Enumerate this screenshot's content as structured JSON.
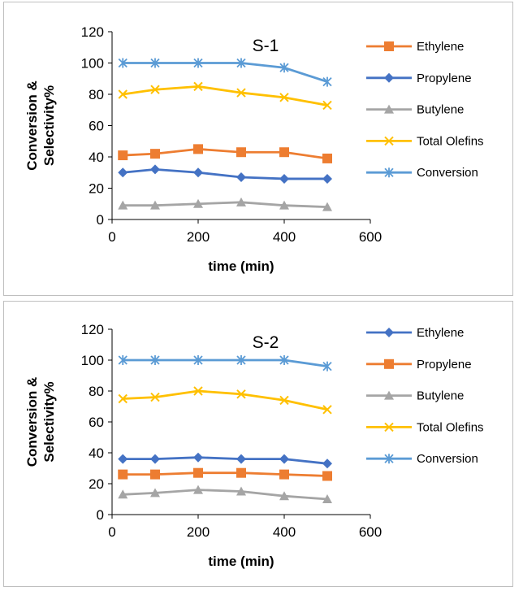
{
  "chart_data": [
    {
      "type": "line",
      "title": "S-1",
      "xlabel": "time (min)",
      "ylabel": "Conversion & Selectivity%",
      "xlim": [
        0,
        600
      ],
      "ylim": [
        0,
        120
      ],
      "xticks": [
        0,
        200,
        400,
        600
      ],
      "yticks": [
        0,
        20,
        40,
        60,
        80,
        100,
        120
      ],
      "grid": false,
      "legend": "right",
      "x": [
        25,
        100,
        200,
        300,
        400,
        500
      ],
      "series": [
        {
          "name": "Ethylene",
          "values": [
            41,
            42,
            45,
            43,
            43,
            39
          ],
          "color": "#ED7D31",
          "marker": "square"
        },
        {
          "name": "Propylene",
          "values": [
            30,
            32,
            30,
            27,
            26,
            26
          ],
          "color": "#4472C4",
          "marker": "diamond"
        },
        {
          "name": "Butylene",
          "values": [
            9,
            9,
            10,
            11,
            9,
            8
          ],
          "color": "#A5A5A5",
          "marker": "triangle"
        },
        {
          "name": "Total Olefins",
          "values": [
            80,
            83,
            85,
            81,
            78,
            73
          ],
          "color": "#FFC000",
          "marker": "x"
        },
        {
          "name": "Conversion",
          "values": [
            100,
            100,
            100,
            100,
            97,
            88
          ],
          "color": "#5B9BD5",
          "marker": "star"
        }
      ]
    },
    {
      "type": "line",
      "title": "S-2",
      "xlabel": "time (min)",
      "ylabel": "Conversion & Selectivity%",
      "xlim": [
        0,
        600
      ],
      "ylim": [
        0,
        120
      ],
      "xticks": [
        0,
        200,
        400,
        600
      ],
      "yticks": [
        0,
        20,
        40,
        60,
        80,
        100,
        120
      ],
      "grid": false,
      "legend": "right",
      "x": [
        25,
        100,
        200,
        300,
        400,
        500
      ],
      "series": [
        {
          "name": "Ethylene",
          "values": [
            36,
            36,
            37,
            36,
            36,
            33
          ],
          "color": "#4472C4",
          "marker": "diamond"
        },
        {
          "name": "Propylene",
          "values": [
            26,
            26,
            27,
            27,
            26,
            25
          ],
          "color": "#ED7D31",
          "marker": "square"
        },
        {
          "name": "Butylene",
          "values": [
            13,
            14,
            16,
            15,
            12,
            10
          ],
          "color": "#A5A5A5",
          "marker": "triangle"
        },
        {
          "name": "Total Olefins",
          "values": [
            75,
            76,
            80,
            78,
            74,
            68
          ],
          "color": "#FFC000",
          "marker": "x"
        },
        {
          "name": "Conversion",
          "values": [
            100,
            100,
            100,
            100,
            100,
            96
          ],
          "color": "#5B9BD5",
          "marker": "star"
        }
      ]
    }
  ]
}
